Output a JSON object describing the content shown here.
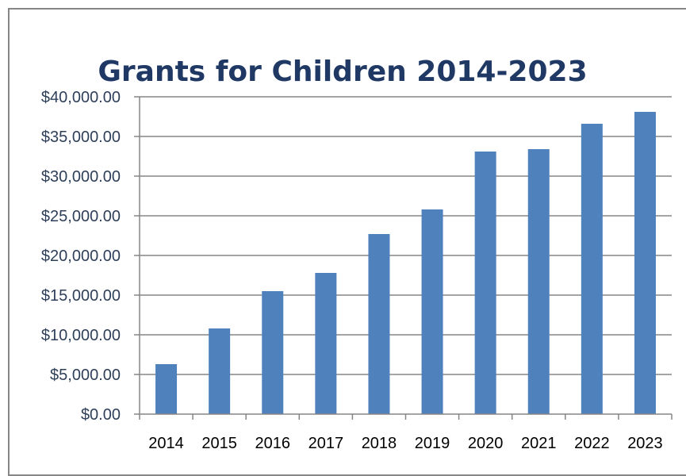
{
  "chart_data": {
    "type": "bar",
    "title": "Grants for Children 2014-2023",
    "xlabel": "",
    "ylabel": "",
    "categories": [
      "2014",
      "2015",
      "2016",
      "2017",
      "2018",
      "2019",
      "2020",
      "2021",
      "2022",
      "2023"
    ],
    "values": [
      6300,
      10800,
      15500,
      17800,
      22700,
      25800,
      33100,
      33400,
      36600,
      38100
    ],
    "ylim": [
      0,
      40000
    ],
    "y_ticks": [
      0,
      5000,
      10000,
      15000,
      20000,
      25000,
      30000,
      35000,
      40000
    ],
    "y_tick_labels": [
      "$0.00",
      "$5,000.00",
      "$10,000.00",
      "$15,000.00",
      "$20,000.00",
      "$25,000.00",
      "$30,000.00",
      "$35,000.00",
      "$40,000.00"
    ],
    "grid": true,
    "legend": "none",
    "bar_color": "#4f81bd",
    "grid_color": "#868686",
    "title_color": "#1f3864"
  }
}
